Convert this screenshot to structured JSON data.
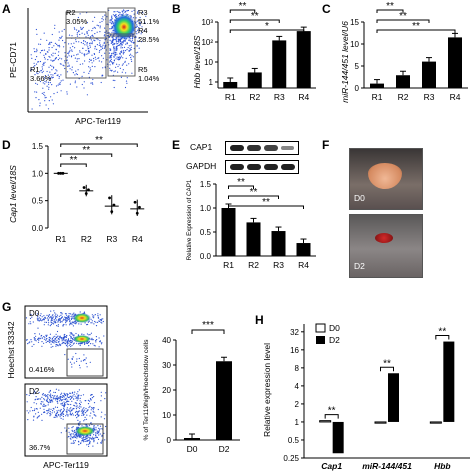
{
  "panels": {
    "A": {
      "label": "A",
      "ylabel": "PE-CD71",
      "xlabel": "APC-Ter119",
      "gates": [
        {
          "name": "R2",
          "pct": "3.05%"
        },
        {
          "name": "R3",
          "pct": "51.1%"
        },
        {
          "name": "R4",
          "pct": "28.5%"
        },
        {
          "name": "R1",
          "pct": "3.66%"
        },
        {
          "name": "R5",
          "pct": "1.04%"
        }
      ]
    },
    "B": {
      "label": "B",
      "ylabel": "Hbb level/18S",
      "yticks": [
        "1",
        "10",
        "10²",
        "10³"
      ],
      "sig": [
        "*",
        "**",
        "**"
      ]
    },
    "C": {
      "label": "C",
      "ylabel": "miR-144/451 level/U6",
      "yticks": [
        "0",
        "5",
        "10",
        "15"
      ],
      "sig": [
        "**",
        "**",
        "**"
      ]
    },
    "D": {
      "label": "D",
      "ylabel": "Cap1 level/18S",
      "yticks": [
        "0.0",
        "0.5",
        "1.0",
        "1.5"
      ],
      "sig": [
        "**",
        "**",
        "**"
      ]
    },
    "E": {
      "label": "E",
      "blot1": "CAP1",
      "blot2": "GAPDH",
      "ylabel": "Relative Expression of CAP1",
      "yticks": [
        "0.0",
        "0.5",
        "1.0",
        "1.5"
      ],
      "sig": [
        "**",
        "**",
        "**"
      ]
    },
    "F": {
      "label": "F",
      "d0": "D0",
      "d2": "D2"
    },
    "G": {
      "label": "G",
      "ylabel": "Hoechst 33342",
      "xlabel": "APC-Ter119",
      "top_day": "D0",
      "top_pct": "0.416%",
      "bottom_day": "D2",
      "bottom_pct": "36.7%",
      "bar_ylabel": "% of Ter119high/Hoechstlow cells",
      "bar_yticks": [
        "0",
        "10",
        "20",
        "30",
        "40"
      ],
      "sig": "***"
    },
    "H": {
      "label": "H",
      "ylabel": "Relative expression level",
      "yticks": [
        "0.25",
        "0.5",
        "1",
        "2",
        "4",
        "8",
        "16",
        "32"
      ],
      "legend": [
        "D0",
        "D2"
      ],
      "genes": [
        "Cap1",
        "miR-144/451",
        "Hbb"
      ],
      "sig": [
        "**",
        "**",
        "**"
      ]
    }
  },
  "categories4": [
    "R1",
    "R2",
    "R3",
    "R4"
  ],
  "categoriesG": [
    "D0",
    "D2"
  ],
  "chart_data": [
    {
      "type": "bar",
      "panel": "B",
      "categories": [
        "R1",
        "R2",
        "R3",
        "R4"
      ],
      "values": [
        1,
        3,
        120,
        350
      ],
      "ylabel": "Hbb level/18S",
      "log_scale": true,
      "ylim": [
        0.3,
        1000
      ]
    },
    {
      "type": "bar",
      "panel": "C",
      "categories": [
        "R1",
        "R2",
        "R3",
        "R4"
      ],
      "values": [
        1,
        2.9,
        6,
        11.5
      ],
      "ylabel": "miR-144/451 level/U6",
      "ylim": [
        0,
        15
      ]
    },
    {
      "type": "scatter",
      "panel": "D",
      "categories": [
        "R1",
        "R2",
        "R3",
        "R4"
      ],
      "means": [
        1.0,
        0.68,
        0.4,
        0.35
      ],
      "ylabel": "Cap1 level/18S",
      "ylim": [
        0,
        1.5
      ]
    },
    {
      "type": "bar",
      "panel": "E",
      "categories": [
        "R1",
        "R2",
        "R3",
        "R4"
      ],
      "values": [
        1.0,
        0.7,
        0.52,
        0.27
      ],
      "ylabel": "Relative Expression of CAP1",
      "ylim": [
        0,
        1.5
      ]
    },
    {
      "type": "bar",
      "panel": "G",
      "categories": [
        "D0",
        "D2"
      ],
      "values": [
        0.8,
        31.5
      ],
      "ylabel": "% of Ter119high/Hoechstlow cells",
      "ylim": [
        0,
        40
      ]
    },
    {
      "type": "bar",
      "panel": "H",
      "categories": [
        "Cap1",
        "miR-144/451",
        "Hbb"
      ],
      "series": [
        {
          "name": "D0",
          "values": [
            1.05,
            1.0,
            1.0
          ]
        },
        {
          "name": "D2",
          "values": [
            0.3,
            6.5,
            22
          ]
        }
      ],
      "ylabel": "Relative expression level",
      "log_scale": true,
      "ylim": [
        0.25,
        32
      ]
    }
  ],
  "colors": {
    "bar": "#000000",
    "open_bar": "#ffffff",
    "gate": "#555555"
  }
}
